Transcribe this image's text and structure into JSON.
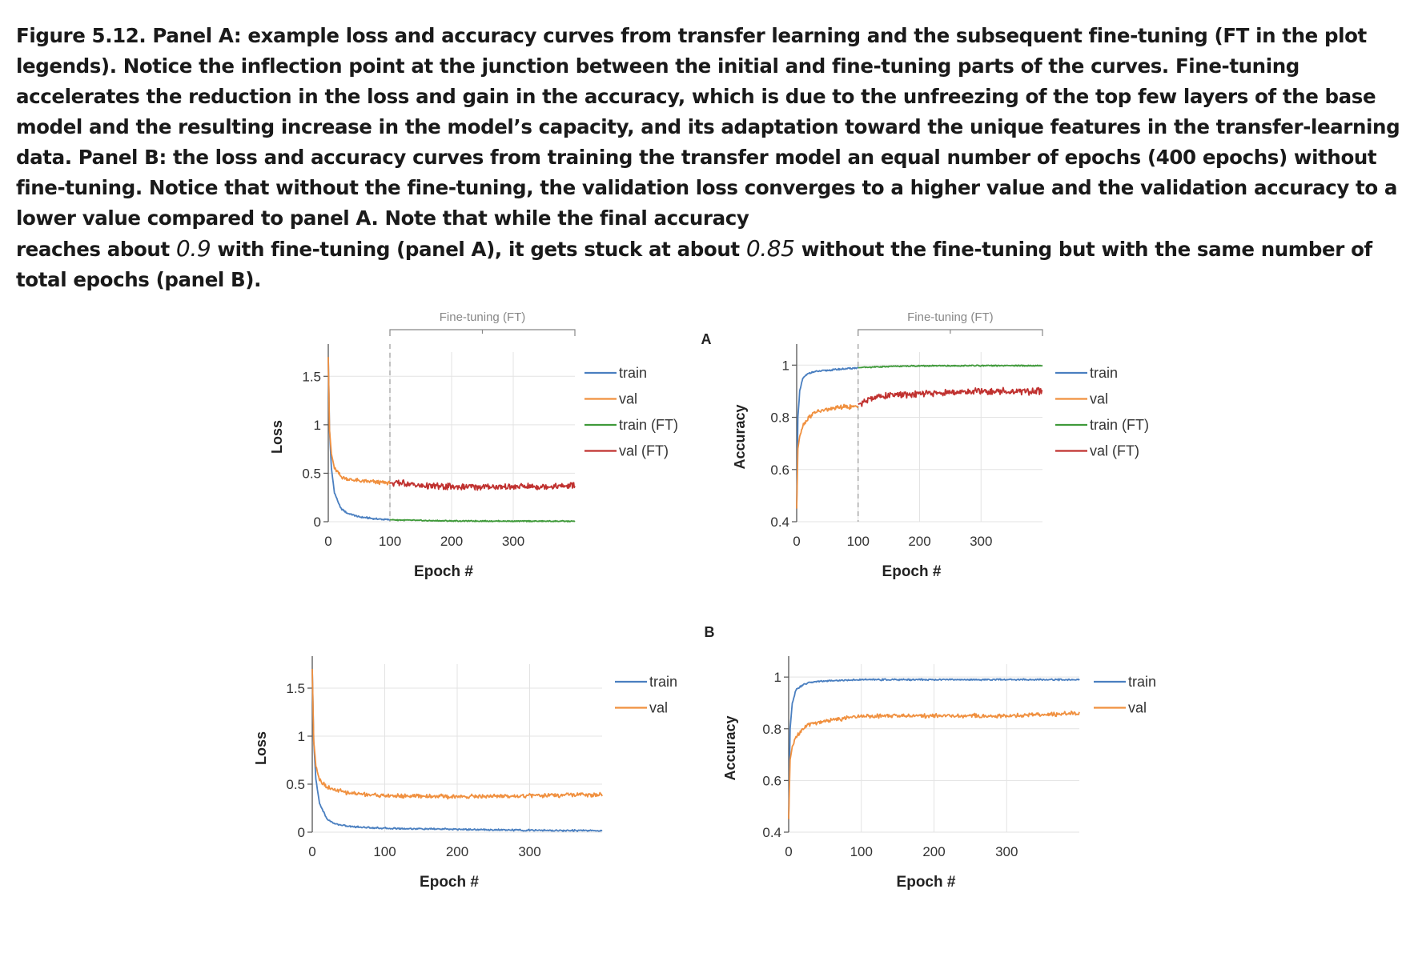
{
  "caption": {
    "line1": "Figure 5.12. Panel A: example loss and accuracy curves from transfer learning and the subsequent fine-tuning (FT in the plot legends). Notice the inflection point at the junction between the initial and fine-tuning parts of the curves. Fine-tuning accelerates the reduction in the loss and gain in the accuracy, which is due to the unfreezing of the top few layers of the base model and the resulting increase in the model’s capacity, and its adaptation toward the unique features in the transfer-learning data. Panel B: the loss and accuracy curves from training the transfer model an equal number of epochs (400 epochs) without fine-tuning. Notice that without the fine-tuning, the validation loss converges to a higher value and the validation accuracy to a lower value compared to panel A. Note that while the final accuracy",
    "line2_a": "reaches about ",
    "value_a": "0.9",
    "line2_b": " with fine-tuning (panel A), it gets stuck at about ",
    "value_b": "0.85",
    "line2_c": " without the fine-tuning but with the same number of total epochs (panel B)."
  },
  "panel_labels": {
    "a": "A",
    "b": "B"
  },
  "colors": {
    "train": "#4a7fc0",
    "val": "#f0903f",
    "train_ft": "#3f9a3a",
    "val_ft": "#c0312f",
    "grid": "#e3e3e3",
    "axis": "#555555"
  },
  "chart_data": [
    {
      "id": "A-loss",
      "type": "line",
      "panel": "A",
      "annotation": "Fine-tuning (FT)",
      "ft_start": 100,
      "xlabel": "Epoch #",
      "ylabel": "Loss",
      "xlim": [
        0,
        400
      ],
      "ylim": [
        0,
        1.75
      ],
      "xticks": [
        0,
        100,
        200,
        300
      ],
      "yticks": [
        0,
        0.5,
        1,
        1.5
      ],
      "xtick_labels": [
        "0",
        "100",
        "200",
        "300"
      ],
      "ytick_labels": [
        "0",
        "0.5",
        "1",
        "1.5"
      ],
      "grid": true,
      "legend": "right",
      "series": [
        {
          "name": "train",
          "key": "train",
          "x": [
            0,
            2,
            5,
            10,
            20,
            30,
            50,
            75,
            100
          ],
          "y": [
            1.7,
            0.95,
            0.55,
            0.3,
            0.14,
            0.09,
            0.05,
            0.03,
            0.02
          ]
        },
        {
          "name": "val",
          "key": "val",
          "x": [
            0,
            2,
            5,
            10,
            20,
            30,
            50,
            75,
            100
          ],
          "y": [
            1.7,
            0.95,
            0.7,
            0.55,
            0.47,
            0.44,
            0.42,
            0.41,
            0.4
          ]
        },
        {
          "name": "train (FT)",
          "key": "train_ft",
          "x": [
            100,
            150,
            200,
            300,
            400
          ],
          "y": [
            0.02,
            0.012,
            0.008,
            0.006,
            0.005
          ]
        },
        {
          "name": "val (FT)",
          "key": "val_ft",
          "x": [
            100,
            120,
            150,
            200,
            300,
            400
          ],
          "y": [
            0.4,
            0.4,
            0.37,
            0.36,
            0.36,
            0.37
          ]
        }
      ]
    },
    {
      "id": "A-acc",
      "type": "line",
      "panel": "A",
      "annotation": "Fine-tuning (FT)",
      "ft_start": 100,
      "xlabel": "Epoch #",
      "ylabel": "Accuracy",
      "xlim": [
        0,
        400
      ],
      "ylim": [
        0.4,
        1.05
      ],
      "xticks": [
        0,
        100,
        200,
        300
      ],
      "yticks": [
        0.4,
        0.6,
        0.8,
        1
      ],
      "xtick_labels": [
        "0",
        "100",
        "200",
        "300"
      ],
      "ytick_labels": [
        "0.4",
        "0.6",
        "0.8",
        "1"
      ],
      "grid": true,
      "legend": "right",
      "series": [
        {
          "name": "train",
          "key": "train",
          "x": [
            0,
            2,
            5,
            10,
            20,
            30,
            50,
            75,
            100
          ],
          "y": [
            0.45,
            0.8,
            0.9,
            0.95,
            0.97,
            0.975,
            0.98,
            0.985,
            0.99
          ]
        },
        {
          "name": "val",
          "key": "val",
          "x": [
            0,
            2,
            5,
            10,
            20,
            30,
            50,
            75,
            100
          ],
          "y": [
            0.45,
            0.68,
            0.73,
            0.77,
            0.8,
            0.82,
            0.83,
            0.84,
            0.84
          ]
        },
        {
          "name": "train (FT)",
          "key": "train_ft",
          "x": [
            100,
            150,
            200,
            300,
            400
          ],
          "y": [
            0.99,
            0.995,
            0.997,
            0.998,
            0.998
          ]
        },
        {
          "name": "val (FT)",
          "key": "val_ft",
          "x": [
            100,
            130,
            200,
            300,
            400
          ],
          "y": [
            0.85,
            0.88,
            0.89,
            0.9,
            0.9
          ]
        }
      ]
    },
    {
      "id": "B-loss",
      "type": "line",
      "panel": "B",
      "xlabel": "Epoch #",
      "ylabel": "Loss",
      "xlim": [
        0,
        400
      ],
      "ylim": [
        0,
        1.75
      ],
      "xticks": [
        0,
        100,
        200,
        300
      ],
      "yticks": [
        0,
        0.5,
        1,
        1.5
      ],
      "xtick_labels": [
        "0",
        "100",
        "200",
        "300"
      ],
      "ytick_labels": [
        "0",
        "0.5",
        "1",
        "1.5"
      ],
      "grid": true,
      "legend": "right",
      "series": [
        {
          "name": "train",
          "key": "train",
          "x": [
            0,
            2,
            5,
            10,
            20,
            30,
            50,
            100,
            200,
            300,
            400
          ],
          "y": [
            1.7,
            0.95,
            0.55,
            0.3,
            0.14,
            0.09,
            0.06,
            0.04,
            0.03,
            0.02,
            0.015
          ]
        },
        {
          "name": "val",
          "key": "val",
          "x": [
            0,
            2,
            5,
            10,
            20,
            30,
            50,
            100,
            200,
            300,
            400
          ],
          "y": [
            1.7,
            0.95,
            0.7,
            0.55,
            0.47,
            0.44,
            0.41,
            0.38,
            0.37,
            0.38,
            0.39
          ]
        }
      ]
    },
    {
      "id": "B-acc",
      "type": "line",
      "panel": "B",
      "xlabel": "Epoch #",
      "ylabel": "Accuracy",
      "xlim": [
        0,
        400
      ],
      "ylim": [
        0.4,
        1.05
      ],
      "xticks": [
        0,
        100,
        200,
        300
      ],
      "yticks": [
        0.4,
        0.6,
        0.8,
        1
      ],
      "xtick_labels": [
        "0",
        "100",
        "200",
        "300"
      ],
      "ytick_labels": [
        "0.4",
        "0.6",
        "0.8",
        "1"
      ],
      "grid": true,
      "legend": "right",
      "series": [
        {
          "name": "train",
          "key": "train",
          "x": [
            0,
            2,
            5,
            10,
            20,
            30,
            50,
            100,
            200,
            300,
            400
          ],
          "y": [
            0.45,
            0.8,
            0.9,
            0.95,
            0.97,
            0.98,
            0.985,
            0.99,
            0.99,
            0.99,
            0.99
          ]
        },
        {
          "name": "val",
          "key": "val",
          "x": [
            0,
            2,
            5,
            10,
            20,
            30,
            50,
            100,
            200,
            300,
            400
          ],
          "y": [
            0.45,
            0.68,
            0.73,
            0.77,
            0.8,
            0.82,
            0.83,
            0.85,
            0.85,
            0.85,
            0.86
          ]
        }
      ]
    }
  ]
}
